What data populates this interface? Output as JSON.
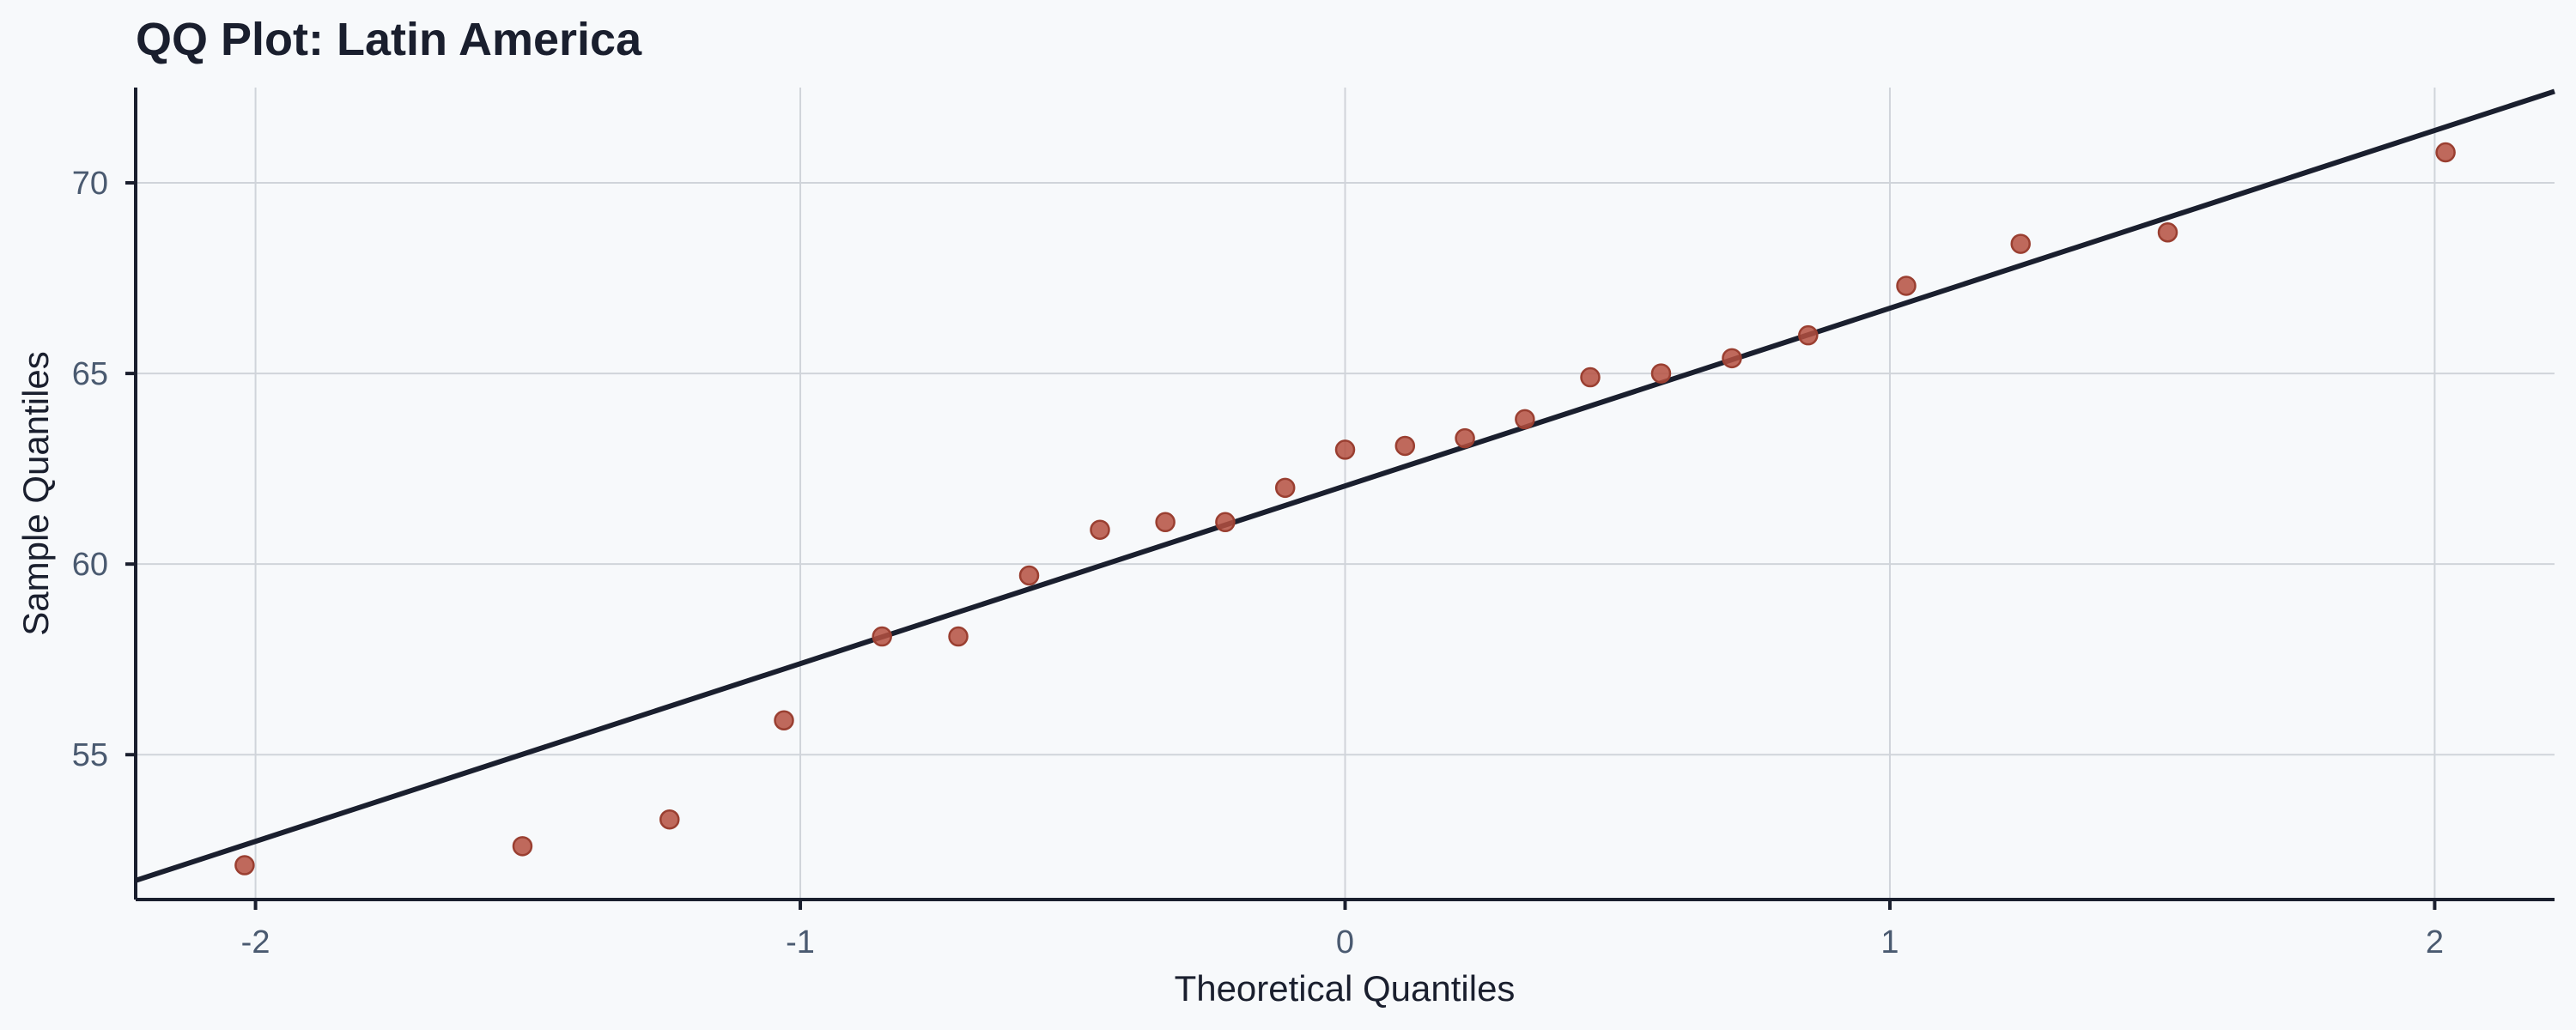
{
  "chart_data": {
    "type": "scatter",
    "title": "QQ Plot: Latin America",
    "xlabel": "Theoretical Quantiles",
    "ylabel": "Sample Quantiles",
    "xlim": [
      -2.22,
      2.22
    ],
    "ylim": [
      51.2,
      72.5
    ],
    "xticks": [
      -2,
      -1,
      0,
      1,
      2
    ],
    "yticks": [
      55,
      60,
      65,
      70
    ],
    "grid": true,
    "point_color": "#b5503f",
    "line_color": "#1a1f2e",
    "reference_line": {
      "x": [
        -2.22,
        2.22
      ],
      "y": [
        51.7,
        72.4
      ]
    },
    "points": {
      "x": [
        -2.02,
        -1.51,
        -1.24,
        -1.03,
        -0.85,
        -0.71,
        -0.58,
        -0.45,
        -0.33,
        -0.22,
        -0.11,
        0.0,
        0.11,
        0.22,
        0.33,
        0.45,
        0.58,
        0.71,
        0.85,
        1.03,
        1.24,
        1.51,
        2.02
      ],
      "y": [
        52.1,
        52.6,
        53.3,
        55.9,
        58.1,
        58.1,
        59.7,
        60.9,
        61.1,
        61.1,
        62.0,
        63.0,
        63.1,
        63.3,
        63.8,
        64.9,
        65.0,
        65.4,
        66.0,
        67.3,
        68.4,
        68.7,
        70.8
      ]
    }
  }
}
